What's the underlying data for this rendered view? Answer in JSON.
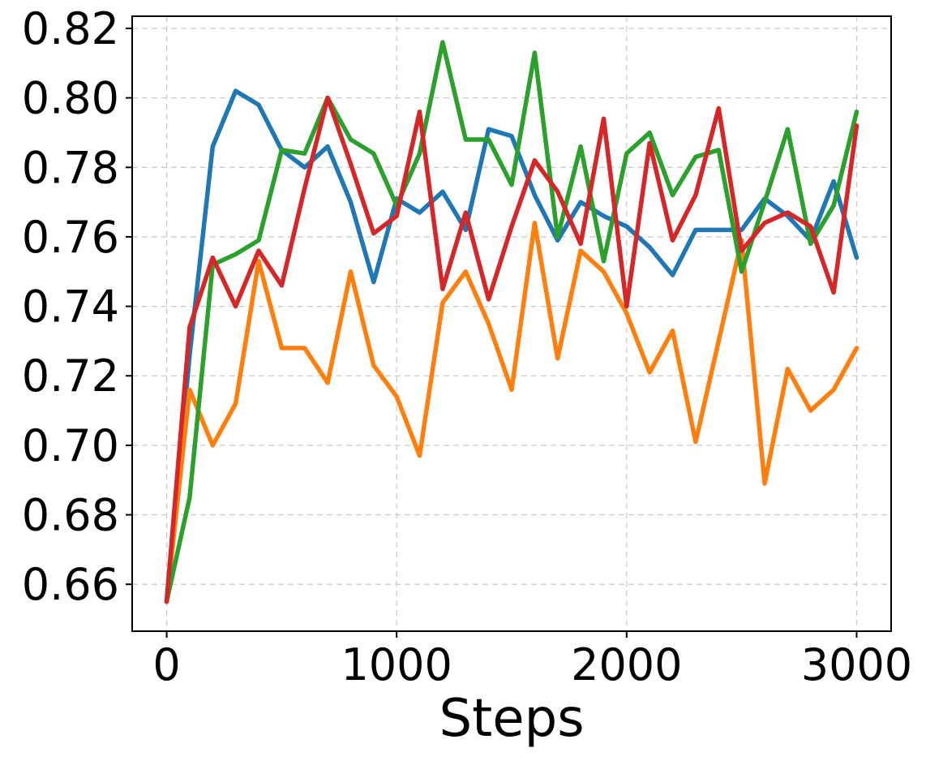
{
  "chart_data": {
    "type": "line",
    "title": "",
    "xlabel": "Steps",
    "ylabel": "",
    "xlim": [
      -150,
      3150
    ],
    "ylim": [
      0.6465,
      0.8235
    ],
    "xticks": [
      0,
      1000,
      2000,
      3000
    ],
    "xtick_labels": [
      "0",
      "1000",
      "2000",
      "3000"
    ],
    "yticks": [
      0.66,
      0.68,
      0.7,
      0.72,
      0.74,
      0.76,
      0.78,
      0.8,
      0.82
    ],
    "ytick_labels": [
      "0.66",
      "0.68",
      "0.70",
      "0.72",
      "0.74",
      "0.76",
      "0.78",
      "0.80",
      "0.82"
    ],
    "grid": true,
    "legend": "none",
    "x": [
      0,
      100,
      200,
      300,
      400,
      500,
      600,
      700,
      800,
      900,
      1000,
      1100,
      1200,
      1300,
      1400,
      1500,
      1600,
      1700,
      1800,
      1900,
      2000,
      2100,
      2200,
      2300,
      2400,
      2500,
      2600,
      2700,
      2800,
      2900,
      3000
    ],
    "series": [
      {
        "color": "#1f77b4",
        "values": [
          0.655,
          0.726,
          0.786,
          0.802,
          0.798,
          0.785,
          0.78,
          0.786,
          0.77,
          0.747,
          0.771,
          0.767,
          0.773,
          0.762,
          0.791,
          0.789,
          0.772,
          0.759,
          0.77,
          0.766,
          0.763,
          0.757,
          0.749,
          0.762,
          0.762,
          0.762,
          0.771,
          0.766,
          0.759,
          0.776,
          0.754
        ]
      },
      {
        "color": "#ff7f0e",
        "values": [
          0.655,
          0.716,
          0.7,
          0.712,
          0.753,
          0.728,
          0.728,
          0.718,
          0.75,
          0.723,
          0.714,
          0.697,
          0.741,
          0.75,
          0.735,
          0.716,
          0.764,
          0.725,
          0.756,
          0.75,
          0.738,
          0.721,
          0.733,
          0.701,
          0.73,
          0.759,
          0.689,
          0.722,
          0.71,
          0.716,
          0.728
        ]
      },
      {
        "color": "#2ca02c",
        "values": [
          0.655,
          0.685,
          0.752,
          0.755,
          0.759,
          0.785,
          0.784,
          0.8,
          0.788,
          0.784,
          0.769,
          0.784,
          0.816,
          0.788,
          0.788,
          0.775,
          0.813,
          0.76,
          0.786,
          0.753,
          0.784,
          0.79,
          0.772,
          0.783,
          0.785,
          0.75,
          0.77,
          0.791,
          0.758,
          0.769,
          0.796
        ]
      },
      {
        "color": "#d62728",
        "values": [
          0.655,
          0.734,
          0.754,
          0.74,
          0.756,
          0.746,
          0.774,
          0.8,
          0.781,
          0.761,
          0.766,
          0.796,
          0.745,
          0.767,
          0.742,
          0.763,
          0.782,
          0.773,
          0.758,
          0.794,
          0.74,
          0.787,
          0.759,
          0.772,
          0.797,
          0.756,
          0.764,
          0.767,
          0.763,
          0.744,
          0.792
        ]
      }
    ]
  }
}
